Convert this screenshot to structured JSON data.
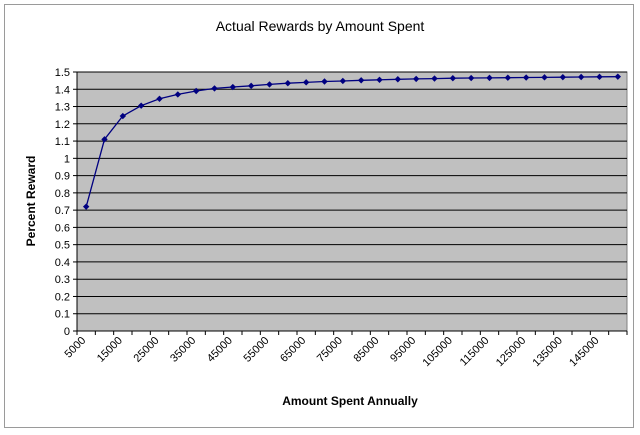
{
  "chart_data": {
    "type": "line",
    "title": "Actual Rewards by Amount Spent",
    "xlabel": "Amount Spent Annually",
    "ylabel": "Percent Reward",
    "x": [
      5000,
      10000,
      15000,
      20000,
      25000,
      30000,
      35000,
      40000,
      45000,
      50000,
      55000,
      60000,
      65000,
      70000,
      75000,
      80000,
      85000,
      90000,
      95000,
      100000,
      105000,
      110000,
      115000,
      120000,
      125000,
      130000,
      135000,
      140000,
      145000,
      150000
    ],
    "x_tick_labels": [
      "5000",
      "15000",
      "25000",
      "35000",
      "45000",
      "55000",
      "65000",
      "75000",
      "85000",
      "95000",
      "105000",
      "115000",
      "125000",
      "135000",
      "145000"
    ],
    "y_tick_labels": [
      "0",
      "0.1",
      "0.2",
      "0.3",
      "0.4",
      "0.5",
      "0.6",
      "0.7",
      "0.8",
      "0.9",
      "1",
      "1.1",
      "1.2",
      "1.3",
      "1.4",
      "1.5"
    ],
    "ylim": [
      0,
      1.5
    ],
    "grid": true,
    "plot_background": "#c0c0c0",
    "series": [
      {
        "color": "#000080",
        "values": [
          0.72,
          1.11,
          1.245,
          1.305,
          1.345,
          1.37,
          1.39,
          1.405,
          1.413,
          1.42,
          1.428,
          1.435,
          1.44,
          1.445,
          1.448,
          1.452,
          1.455,
          1.458,
          1.46,
          1.462,
          1.464,
          1.465,
          1.466,
          1.467,
          1.468,
          1.469,
          1.47,
          1.471,
          1.472,
          1.473
        ]
      }
    ]
  }
}
